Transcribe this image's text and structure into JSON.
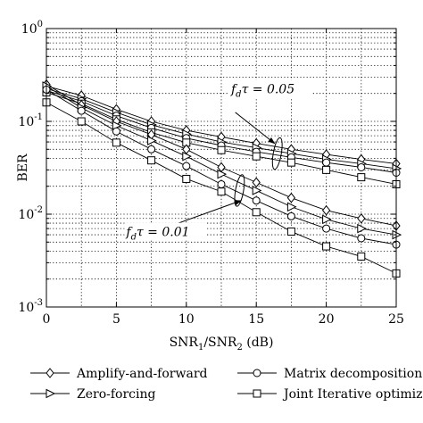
{
  "chart_data": {
    "type": "line",
    "xlabel_base": "SNR",
    "xlabel_sub1": "1",
    "xlabel_mid": "/SNR",
    "xlabel_sub2": "2",
    "xlabel_unit": " (dB)",
    "ylabel": "BER",
    "xlim": [
      0,
      25
    ],
    "ylim": [
      0.001,
      1
    ],
    "yscale": "log",
    "grid": true,
    "x_ticks": [
      {
        "value": 0,
        "label": "0"
      },
      {
        "value": 5,
        "label": "5"
      },
      {
        "value": 10,
        "label": "10"
      },
      {
        "value": 15,
        "label": "15"
      },
      {
        "value": 20,
        "label": "20"
      },
      {
        "value": 25,
        "label": "25"
      }
    ],
    "y_ticks": [
      {
        "value": 0.001,
        "base": "10",
        "exp": "-3"
      },
      {
        "value": 0.01,
        "base": "10",
        "exp": "-2"
      },
      {
        "value": 0.1,
        "base": "10",
        "exp": "-1"
      },
      {
        "value": 1,
        "base": "10",
        "exp": "0"
      }
    ],
    "x": [
      0,
      2.5,
      5,
      7.5,
      10,
      12.5,
      15,
      17.5,
      20,
      22.5,
      25
    ],
    "series": [
      {
        "name": "Amplify-and-forward",
        "marker": "diamond",
        "group": "0.05",
        "values": [
          0.24,
          0.19,
          0.135,
          0.1,
          0.08,
          0.068,
          0.058,
          0.05,
          0.044,
          0.039,
          0.035
        ]
      },
      {
        "name": "Zero-forcing",
        "marker": "triangle-right",
        "group": "0.05",
        "values": [
          0.225,
          0.175,
          0.125,
          0.092,
          0.073,
          0.06,
          0.052,
          0.045,
          0.039,
          0.035,
          0.031
        ]
      },
      {
        "name": "Matrix decomposition",
        "marker": "circle",
        "group": "0.05",
        "values": [
          0.215,
          0.165,
          0.115,
          0.085,
          0.066,
          0.055,
          0.047,
          0.041,
          0.036,
          0.032,
          0.028
        ]
      },
      {
        "name": "Joint Iterative optimization",
        "marker": "square",
        "group": "0.05",
        "values": [
          0.205,
          0.155,
          0.105,
          0.076,
          0.059,
          0.049,
          0.042,
          0.036,
          0.03,
          0.025,
          0.021
        ]
      },
      {
        "name": "Amplify-and-forward",
        "marker": "diamond",
        "group": "0.01",
        "values": [
          0.25,
          0.15,
          0.1,
          0.072,
          0.05,
          0.032,
          0.022,
          0.015,
          0.011,
          0.009,
          0.0075
        ]
      },
      {
        "name": "Zero-forcing",
        "marker": "triangle-right",
        "group": "0.01",
        "values": [
          0.24,
          0.14,
          0.09,
          0.062,
          0.042,
          0.027,
          0.018,
          0.012,
          0.0088,
          0.007,
          0.006
        ]
      },
      {
        "name": "Matrix decomposition",
        "marker": "circle",
        "group": "0.01",
        "values": [
          0.22,
          0.13,
          0.078,
          0.05,
          0.033,
          0.021,
          0.014,
          0.0095,
          0.007,
          0.0055,
          0.0047
        ]
      },
      {
        "name": "Joint Iterative optimization",
        "marker": "square",
        "group": "0.01",
        "values": [
          0.16,
          0.1,
          0.059,
          0.038,
          0.024,
          0.0175,
          0.0105,
          0.0065,
          0.0045,
          0.0035,
          0.0023
        ]
      }
    ],
    "annotations": [
      {
        "text": "f_dτ = 0.05",
        "main": "f",
        "sub": "d",
        "rest": "τ = 0.05",
        "text_at": [
          13.2,
          0.2
        ],
        "arrow_from": [
          13.5,
          0.125
        ],
        "arrow_to": [
          16.3,
          0.058
        ],
        "ellipse_at": [
          16.5,
          0.045
        ]
      },
      {
        "text": "f_dτ = 0.01",
        "main": "f",
        "sub": "d",
        "rest": "τ = 0.01",
        "text_at": [
          5.7,
          0.0058
        ],
        "arrow_from": [
          8.7,
          0.0073
        ],
        "arrow_to": [
          13.9,
          0.014
        ],
        "ellipse_at": [
          13.8,
          0.018
        ]
      }
    ],
    "legend": {
      "placement": "bottom",
      "entries": [
        {
          "label": "Amplify-and-forward",
          "marker": "diamond"
        },
        {
          "label": "Matrix decomposition",
          "marker": "circle"
        },
        {
          "label": "Zero-forcing",
          "marker": "triangle-right"
        },
        {
          "label": "Joint Iterative optimizatio",
          "marker": "square"
        }
      ]
    }
  }
}
